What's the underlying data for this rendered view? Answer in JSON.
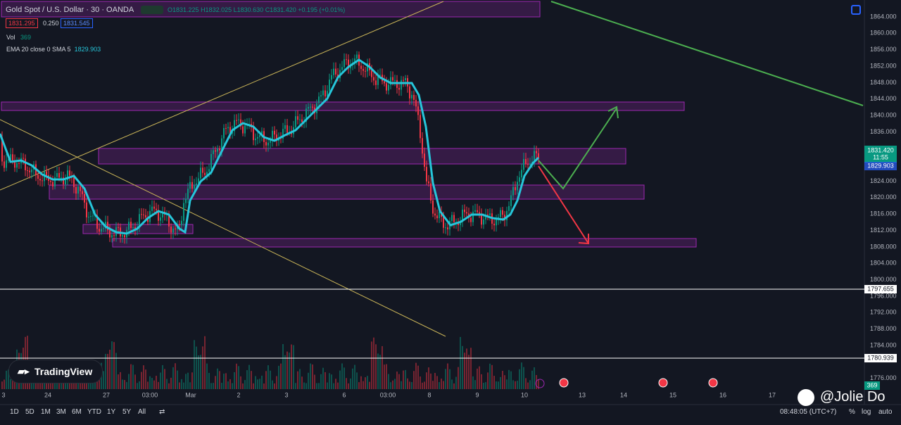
{
  "header": {
    "symbol": "Gold Spot / U.S. Dollar · 30 · OANDA",
    "open": "O1831.225",
    "high": "H1832.025",
    "low": "L1830.630",
    "close": "C1831.420",
    "change": "+0.195 (+0.01%)",
    "bid": "1831.295",
    "spread": "0.250",
    "ask": "1831.545"
  },
  "indicators": {
    "vol_label": "Vol",
    "vol_value": "369",
    "ema_label": "EMA 20 close 0 SMA 5",
    "ema_value": "1829.903"
  },
  "price_axis": [
    "1864.000",
    "1860.000",
    "1856.000",
    "1852.000",
    "1848.000",
    "1844.000",
    "1840.000",
    "1836.000",
    "1824.000",
    "1820.000",
    "1816.000",
    "1812.000",
    "1808.000",
    "1804.000",
    "1800.000",
    "1796.000",
    "1792.000",
    "1788.000",
    "1784.000",
    "1776.000"
  ],
  "price_tags": {
    "last": "1831.420",
    "countdown": "11:55",
    "ema": "1829.903",
    "level1": "1797.655",
    "level2": "1780.939",
    "volume": "369"
  },
  "time_axis": [
    "3",
    "24",
    "27",
    "03:00",
    "Mar",
    "2",
    "3",
    "6",
    "03:00",
    "8",
    "9",
    "10",
    "13",
    "14",
    "15",
    "16",
    "17"
  ],
  "toolbar": {
    "ranges": [
      "1D",
      "5D",
      "1M",
      "3M",
      "6M",
      "YTD",
      "1Y",
      "5Y",
      "All"
    ],
    "clock": "08:48:05 (UTC+7)",
    "percent": "%",
    "log": "log",
    "auto": "auto"
  },
  "brand": "TradingView",
  "watermark": "@Jolie Do"
}
